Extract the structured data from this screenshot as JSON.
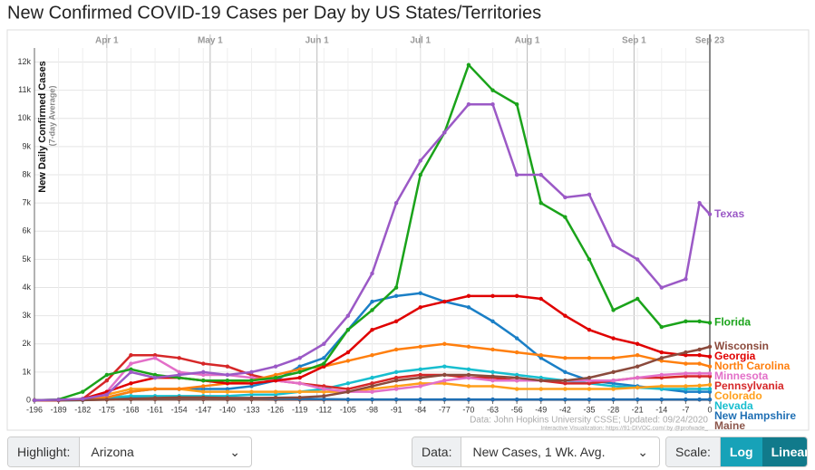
{
  "chart_data": {
    "type": "line",
    "title": "New Confirmed COVID-19 Cases per Day by US States/Territories",
    "ylabel": "New Daily Confirmed Cases",
    "ylabel_sub": "(7-day Average)",
    "source": "Data: John Hopkins University CSSE; Updated: 09/24/2020",
    "credit": "Interactive Visualization: https://91-DIVOC.com/ by @profwade_",
    "x": [
      -196,
      -189,
      -182,
      -175,
      -168,
      -161,
      -154,
      -147,
      -140,
      -133,
      -126,
      -119,
      -112,
      -105,
      -98,
      -91,
      -84,
      -77,
      -70,
      -63,
      -56,
      -49,
      -42,
      -35,
      -28,
      -21,
      -14,
      -7,
      -3,
      0
    ],
    "xlim": [
      -196,
      0
    ],
    "xticks": [
      -196,
      -189,
      -182,
      -175,
      -168,
      -161,
      -154,
      -147,
      -140,
      -133,
      -126,
      -119,
      -112,
      -105,
      -98,
      -91,
      -84,
      -77,
      -70,
      -63,
      -56,
      -49,
      -42,
      -35,
      -28,
      -21,
      -14,
      -7,
      0
    ],
    "date_ticks": [
      {
        "value": -175,
        "label": "Apr 1"
      },
      {
        "value": -145,
        "label": "May 1"
      },
      {
        "value": -114,
        "label": "Jun 1"
      },
      {
        "value": -84,
        "label": "Jul 1"
      },
      {
        "value": -53,
        "label": "Aug 1"
      },
      {
        "value": -22,
        "label": "Sep 1"
      },
      {
        "value": 0,
        "label": "Sep 23"
      }
    ],
    "ylim": [
      0,
      12500
    ],
    "yticks": [
      0,
      {
        "value": 1000,
        "label": "1k"
      },
      {
        "value": 2000,
        "label": "2k"
      },
      {
        "value": 3000,
        "label": "3k"
      },
      {
        "value": 4000,
        "label": "4k"
      },
      {
        "value": 5000,
        "label": "5k"
      },
      {
        "value": 6000,
        "label": "6k"
      },
      {
        "value": 7000,
        "label": "7k"
      },
      {
        "value": 8000,
        "label": "8k"
      },
      {
        "value": 9000,
        "label": "9k"
      },
      {
        "value": 10000,
        "label": "10k"
      },
      {
        "value": 11000,
        "label": "11k"
      },
      {
        "value": 12000,
        "label": "12k"
      }
    ],
    "grid": true,
    "series": [
      {
        "color": "#1a7fc6",
        "values": [
          0,
          0,
          20,
          100,
          300,
          400,
          400,
          400,
          400,
          500,
          700,
          1200,
          1500,
          2500,
          3500,
          3700,
          3800,
          3500,
          3300,
          2800,
          2200,
          1500,
          1000,
          700,
          600,
          500,
          400,
          300,
          300,
          300
        ]
      },
      {
        "name": "Maine",
        "color": "#8c564b",
        "values": [
          0,
          0,
          5,
          20,
          30,
          30,
          30,
          30,
          25,
          25,
          20,
          20,
          20,
          20,
          20,
          20,
          20,
          20,
          20,
          20,
          20,
          20,
          20,
          20,
          20,
          20,
          20,
          20,
          20,
          20
        ]
      },
      {
        "name": "New Hampshire",
        "color": "#1f6fb4",
        "values": [
          0,
          0,
          10,
          50,
          100,
          100,
          100,
          100,
          80,
          80,
          60,
          50,
          40,
          30,
          30,
          30,
          30,
          30,
          30,
          30,
          30,
          30,
          30,
          30,
          30,
          30,
          30,
          30,
          30,
          30
        ]
      },
      {
        "name": "Nevada",
        "color": "#17becf",
        "values": [
          0,
          0,
          10,
          100,
          150,
          150,
          150,
          150,
          150,
          200,
          200,
          300,
          400,
          600,
          800,
          1000,
          1100,
          1200,
          1100,
          1000,
          900,
          800,
          700,
          600,
          500,
          450,
          400,
          400,
          400,
          400
        ]
      },
      {
        "name": "Colorado",
        "color": "#ff9f1a",
        "values": [
          0,
          0,
          20,
          200,
          400,
          400,
          400,
          300,
          300,
          300,
          300,
          300,
          300,
          300,
          400,
          500,
          600,
          600,
          500,
          500,
          400,
          400,
          400,
          400,
          400,
          450,
          500,
          500,
          520,
          550
        ]
      },
      {
        "name": "Pennsylvania",
        "color": "#d62728",
        "values": [
          0,
          0,
          50,
          700,
          1600,
          1600,
          1500,
          1300,
          1200,
          900,
          700,
          600,
          500,
          400,
          600,
          800,
          900,
          900,
          800,
          800,
          700,
          700,
          600,
          600,
          700,
          800,
          800,
          850,
          850,
          850
        ]
      },
      {
        "name": "Minnesota",
        "color": "#e36fc8",
        "values": [
          0,
          0,
          20,
          300,
          1300,
          1500,
          1000,
          900,
          900,
          800,
          700,
          600,
          400,
          300,
          300,
          400,
          500,
          700,
          800,
          700,
          700,
          700,
          700,
          700,
          700,
          800,
          900,
          950,
          950,
          950
        ]
      },
      {
        "name": "North Carolina",
        "color": "#ff7f0e",
        "values": [
          0,
          0,
          20,
          100,
          300,
          400,
          400,
          500,
          600,
          700,
          900,
          1100,
          1200,
          1400,
          1600,
          1800,
          1900,
          2000,
          1900,
          1800,
          1700,
          1600,
          1500,
          1500,
          1500,
          1600,
          1400,
          1300,
          1300,
          1200
        ]
      },
      {
        "name": "Georgia",
        "color": "#e00000",
        "values": [
          0,
          0,
          50,
          300,
          600,
          800,
          800,
          700,
          600,
          600,
          700,
          800,
          1200,
          1700,
          2500,
          2800,
          3300,
          3500,
          3700,
          3700,
          3700,
          3600,
          3000,
          2500,
          2200,
          2000,
          1700,
          1600,
          1600,
          1550
        ]
      },
      {
        "name": "Wisconsin",
        "color": "#8b4a3c",
        "values": [
          0,
          0,
          10,
          30,
          50,
          80,
          100,
          100,
          80,
          80,
          90,
          100,
          150,
          300,
          500,
          700,
          800,
          900,
          900,
          850,
          800,
          700,
          700,
          800,
          1000,
          1200,
          1500,
          1700,
          1800,
          1900
        ]
      },
      {
        "name": "Florida",
        "color": "#1aa31a",
        "values": [
          0,
          30,
          300,
          900,
          1100,
          900,
          800,
          700,
          700,
          700,
          800,
          1000,
          1300,
          2500,
          3200,
          4000,
          8000,
          9500,
          11900,
          11000,
          10500,
          7000,
          6500,
          5000,
          3200,
          3600,
          2600,
          2800,
          2800,
          2750
        ]
      },
      {
        "name": "Texas",
        "color": "#9b59c6",
        "values": [
          0,
          20,
          50,
          200,
          1000,
          800,
          900,
          1000,
          900,
          1000,
          1200,
          1500,
          2000,
          3000,
          4500,
          7000,
          8500,
          9500,
          10500,
          10500,
          8000,
          8000,
          7200,
          7300,
          5500,
          5000,
          4000,
          4300,
          7000,
          6600
        ]
      }
    ]
  },
  "controls": {
    "highlight_label": "Highlight:",
    "highlight_value": "Arizona",
    "data_label": "Data:",
    "data_value": "New Cases, 1 Wk. Avg.",
    "scale_label": "Scale:",
    "scale_options": [
      "Log",
      "Linear"
    ]
  }
}
